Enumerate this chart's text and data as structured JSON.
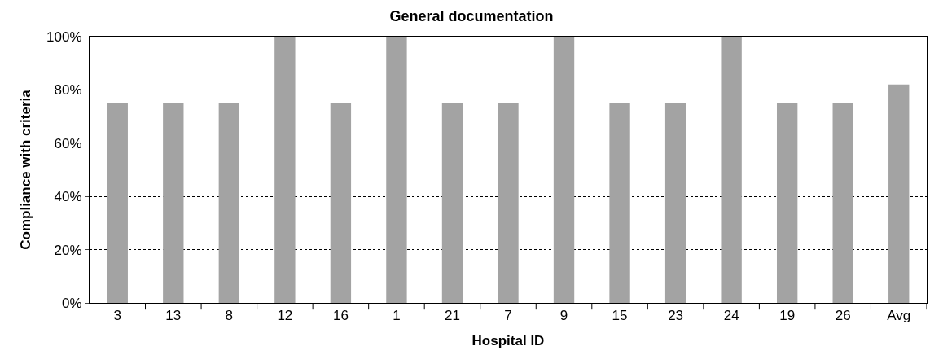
{
  "chart_data": {
    "type": "bar",
    "title": "General documentation",
    "xlabel": "Hospital ID",
    "ylabel": "Compliance with criteria",
    "categories": [
      "3",
      "13",
      "8",
      "12",
      "16",
      "1",
      "21",
      "7",
      "9",
      "15",
      "23",
      "24",
      "19",
      "26",
      "Avg"
    ],
    "values": [
      75,
      75,
      75,
      100,
      75,
      100,
      75,
      75,
      100,
      75,
      75,
      100,
      75,
      75,
      82
    ],
    "color": "#a3a3a3",
    "ylim": [
      0,
      100
    ],
    "yticks": [
      {
        "value": 0,
        "label": "0%"
      },
      {
        "value": 20,
        "label": "20%"
      },
      {
        "value": 40,
        "label": "40%"
      },
      {
        "value": 60,
        "label": "60%"
      },
      {
        "value": 80,
        "label": "80%"
      },
      {
        "value": 100,
        "label": "100%"
      }
    ],
    "grid": "y"
  }
}
